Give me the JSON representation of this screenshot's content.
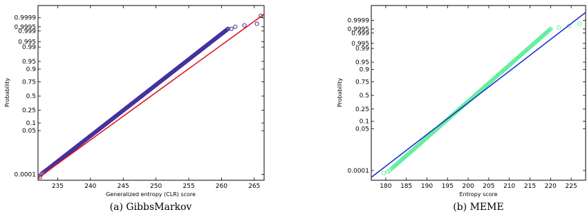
{
  "chart_data": [
    {
      "type": "scatter",
      "caption": "(a) GibbsMarkov",
      "xlabel": "Generalized entropy (CLR) score",
      "ylabel": "Probability",
      "xlim": [
        232,
        266.5
      ],
      "x_ticks": [
        235,
        240,
        245,
        250,
        255,
        260,
        265
      ],
      "y_ticks": [
        {
          "label": "0.0001",
          "p": 0.0001
        },
        {
          "label": "0.05",
          "p": 0.05
        },
        {
          "label": "0.1",
          "p": 0.1
        },
        {
          "label": "0.25",
          "p": 0.25
        },
        {
          "label": "0.5",
          "p": 0.5
        },
        {
          "label": "0.75",
          "p": 0.75
        },
        {
          "label": "0.9",
          "p": 0.9
        },
        {
          "label": "0.95",
          "p": 0.95
        },
        {
          "label": "0.99",
          "p": 0.99
        },
        {
          "label": "0.995",
          "p": 0.995
        },
        {
          "label": "0.999",
          "p": 0.999
        },
        {
          "label": "0.9995",
          "p": 0.9995
        },
        {
          "label": "0.9999",
          "p": 0.9999
        }
      ],
      "grid": false,
      "point_color": "#3f2a9a",
      "line_color": "#e0101a",
      "fit_line": {
        "x": [
          232.0,
          266.5
        ],
        "y": [
          5e-05,
          0.99995
        ]
      },
      "bulk": {
        "x_start": 232.9,
        "x_end": 261.0,
        "p_start": 0.00015,
        "p_end": 0.9993
      },
      "points": [
        {
          "x": 232.3,
          "y": 6e-05
        },
        {
          "x": 232.5,
          "y": 0.0001
        },
        {
          "x": 232.7,
          "y": 0.00013
        },
        {
          "x": 261.5,
          "y": 0.9993
        },
        {
          "x": 262.1,
          "y": 0.9995
        },
        {
          "x": 263.5,
          "y": 0.9996
        },
        {
          "x": 265.4,
          "y": 0.9997
        },
        {
          "x": 266.0,
          "y": 0.99993
        }
      ]
    },
    {
      "type": "scatter",
      "caption": "(b) MEME",
      "xlabel": "Entropy score",
      "ylabel": "Probability",
      "xlim": [
        176.5,
        228.5
      ],
      "x_ticks": [
        180,
        185,
        190,
        195,
        200,
        205,
        210,
        215,
        220,
        225
      ],
      "y_ticks": [
        {
          "label": "0.0001",
          "p": 0.0001
        },
        {
          "label": "0.05",
          "p": 0.05
        },
        {
          "label": "0.1",
          "p": 0.1
        },
        {
          "label": "0.25",
          "p": 0.25
        },
        {
          "label": "0.5",
          "p": 0.5
        },
        {
          "label": "0.75",
          "p": 0.75
        },
        {
          "label": "0.9",
          "p": 0.9
        },
        {
          "label": "0.95",
          "p": 0.95
        },
        {
          "label": "0.99",
          "p": 0.99
        },
        {
          "label": "0.995",
          "p": 0.995
        },
        {
          "label": "0.999",
          "p": 0.999
        },
        {
          "label": "0.9995",
          "p": 0.9995
        },
        {
          "label": "0.9999",
          "p": 0.9999
        }
      ],
      "grid": false,
      "point_color": "#66eea0",
      "line_color": "#1a2fd0",
      "fit_line": {
        "x": [
          176.5,
          228.5
        ],
        "y": [
          2.5e-05,
          0.99998
        ]
      },
      "bulk": {
        "x_start": 181.5,
        "x_end": 220.0,
        "p_start": 0.00015,
        "p_end": 0.9995
      },
      "points": [
        {
          "x": 179.5,
          "y": 6e-05
        },
        {
          "x": 180.5,
          "y": 8e-05
        },
        {
          "x": 181.0,
          "y": 0.0001
        },
        {
          "x": 222.0,
          "y": 0.9996
        },
        {
          "x": 224.5,
          "y": 0.9997
        },
        {
          "x": 227.0,
          "y": 0.9998
        }
      ]
    }
  ]
}
